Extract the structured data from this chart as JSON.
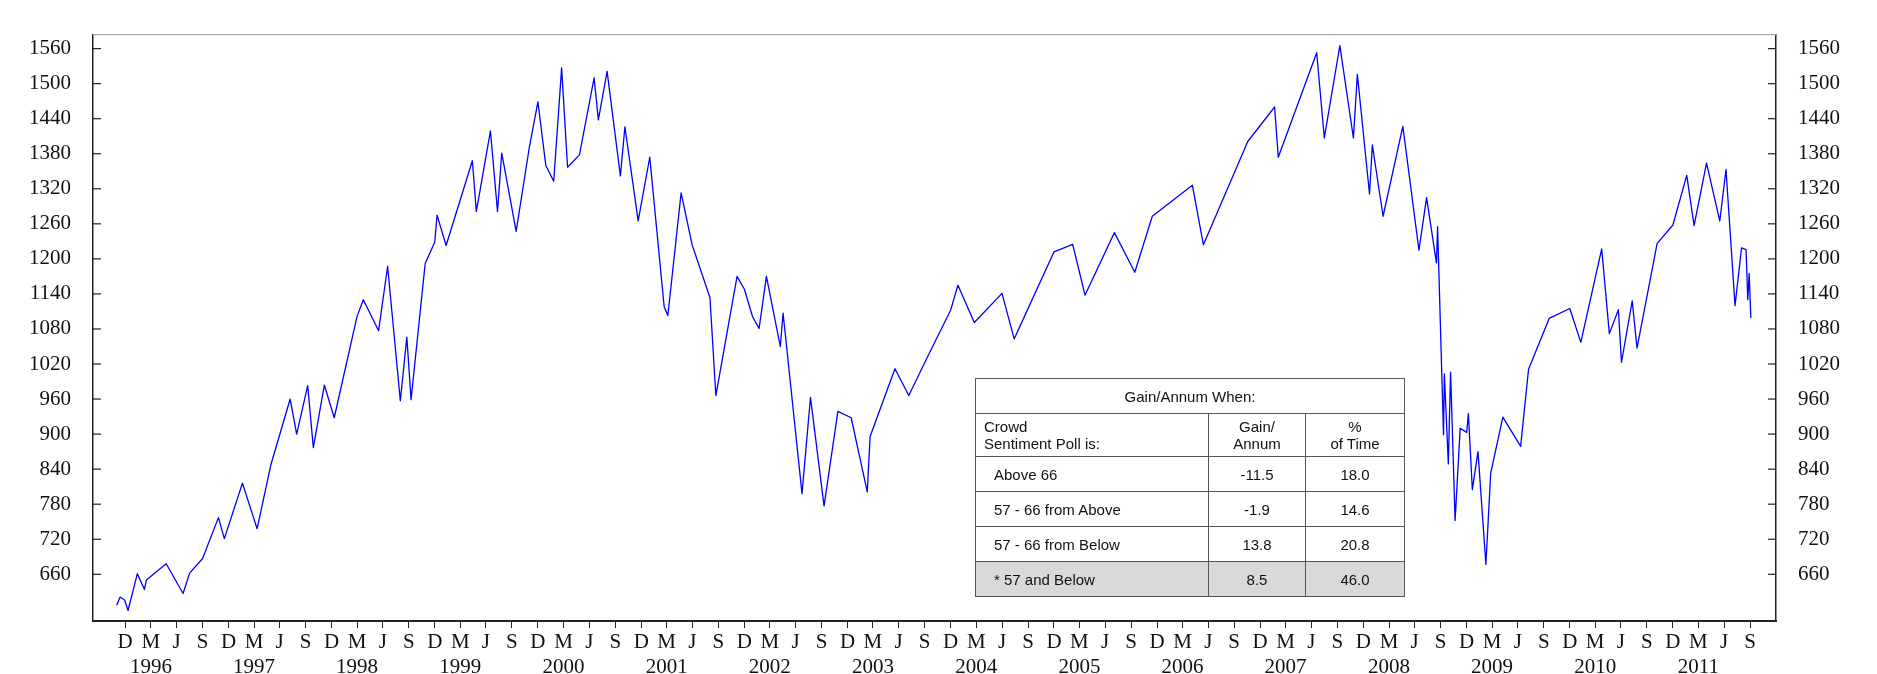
{
  "chart_data": {
    "type": "line",
    "x": [
      "1995-12-01",
      "1995-12-13",
      "1995-12-29",
      "1996-01-10",
      "1996-02-12",
      "1996-03-08",
      "1996-03-15",
      "1996-05-24",
      "1996-07-23",
      "1996-08-15",
      "1996-09-30",
      "1996-11-25",
      "1996-12-16",
      "1997-02-18",
      "1997-04-11",
      "1997-05-30",
      "1997-08-06",
      "1997-08-29",
      "1997-10-07",
      "1997-10-27",
      "1997-12-05",
      "1998-01-09",
      "1998-03-31",
      "1998-04-22",
      "1998-06-15",
      "1998-07-17",
      "1998-08-31",
      "1998-09-23",
      "1998-10-08",
      "1998-11-27",
      "1998-12-31",
      "1999-01-08",
      "1999-02-09",
      "1999-05-13",
      "1999-05-27",
      "1999-07-16",
      "1999-08-10",
      "1999-08-25",
      "1999-10-15",
      "1999-11-30",
      "1999-12-31",
      "2000-01-28",
      "2000-02-25",
      "2000-03-24",
      "2000-04-14",
      "2000-05-26",
      "2000-07-17",
      "2000-08-01",
      "2000-09-01",
      "2000-10-18",
      "2000-11-03",
      "2000-12-20",
      "2001-01-30",
      "2001-03-22",
      "2001-04-04",
      "2001-05-21",
      "2001-06-29",
      "2001-08-31",
      "2001-09-21",
      "2001-12-05",
      "2001-12-31",
      "2002-01-29",
      "2002-02-21",
      "2002-03-19",
      "2002-05-07",
      "2002-05-17",
      "2002-07-23",
      "2002-08-22",
      "2002-10-09",
      "2002-11-27",
      "2003-01-13",
      "2003-03-11",
      "2003-03-21",
      "2003-06-17",
      "2003-08-05",
      "2003-10-17",
      "2003-12-31",
      "2004-01-26",
      "2004-03-24",
      "2004-06-30",
      "2004-08-12",
      "2004-12-31",
      "2005-03-07",
      "2005-04-20",
      "2005-08-02",
      "2005-10-13",
      "2005-12-14",
      "2006-05-05",
      "2006-06-13",
      "2006-11-17",
      "2007-02-20",
      "2007-03-05",
      "2007-07-19",
      "2007-08-15",
      "2007-10-09",
      "2007-11-26",
      "2007-12-10",
      "2008-01-22",
      "2008-02-01",
      "2008-03-10",
      "2008-05-19",
      "2008-07-15",
      "2008-08-11",
      "2008-09-15",
      "2008-09-19",
      "2008-10-10",
      "2008-10-13",
      "2008-10-27",
      "2008-11-04",
      "2008-11-20",
      "2008-12-08",
      "2008-12-31",
      "2009-01-06",
      "2009-01-20",
      "2009-02-09",
      "2009-03-09",
      "2009-03-26",
      "2009-05-08",
      "2009-07-10",
      "2009-08-07",
      "2009-10-19",
      "2009-12-31",
      "2010-02-08",
      "2010-04-23",
      "2010-05-20",
      "2010-06-21",
      "2010-07-02",
      "2010-08-09",
      "2010-08-26",
      "2010-11-05",
      "2010-12-31",
      "2011-02-18",
      "2011-03-16",
      "2011-04-29",
      "2011-06-15",
      "2011-07-07",
      "2011-08-08",
      "2011-08-31",
      "2011-09-16",
      "2011-09-22",
      "2011-09-27",
      "2011-10-03"
    ],
    "series": [
      {
        "color": "#0000ff",
        "values": [
          607,
          621,
          616,
          598,
          661,
          634,
          650,
          678,
          627,
          662,
          687,
          757,
          721,
          816,
          738,
          848,
          960,
          900,
          983,
          877,
          984,
          928,
          1102,
          1130,
          1077,
          1187,
          957,
          1066,
          959,
          1192,
          1229,
          1275,
          1223,
          1368,
          1281,
          1419,
          1281,
          1381,
          1247,
          1389,
          1469,
          1360,
          1333,
          1527,
          1357,
          1378,
          1510,
          1438,
          1521,
          1342,
          1426,
          1265,
          1374,
          1118,
          1103,
          1313,
          1224,
          1134,
          966,
          1170,
          1148,
          1101,
          1081,
          1170,
          1050,
          1107,
          798,
          963,
          777,
          939,
          928,
          801,
          896,
          1012,
          966,
          1039,
          1112,
          1155,
          1091,
          1141,
          1063,
          1212,
          1225,
          1138,
          1245,
          1177,
          1273,
          1326,
          1224,
          1401,
          1460,
          1374,
          1553,
          1407,
          1565,
          1407,
          1516,
          1311,
          1395,
          1273,
          1427,
          1215,
          1305,
          1193,
          1255,
          899,
          1003,
          849,
          1006,
          752,
          910,
          903,
          935,
          805,
          870,
          677,
          833,
          929,
          879,
          1011,
          1098,
          1115,
          1057,
          1217,
          1072,
          1113,
          1023,
          1128,
          1047,
          1226,
          1258,
          1343,
          1257,
          1364,
          1265,
          1353,
          1120,
          1219,
          1216,
          1130,
          1175,
          1099
        ]
      }
    ],
    "xlim": [
      "1995-09-08",
      "2011-12-31"
    ],
    "xticks": [
      {
        "value": "1995-12-31",
        "label": "D"
      },
      {
        "value": "1996-03-31",
        "label": "M\n1996"
      },
      {
        "value": "1996-06-30",
        "label": "J"
      },
      {
        "value": "1996-09-30",
        "label": "S"
      },
      {
        "value": "1996-12-31",
        "label": "D"
      },
      {
        "value": "1997-03-31",
        "label": "M\n1997"
      },
      {
        "value": "1997-06-30",
        "label": "J"
      },
      {
        "value": "1997-09-30",
        "label": "S"
      },
      {
        "value": "1997-12-31",
        "label": "D"
      },
      {
        "value": "1998-03-31",
        "label": "M\n1998"
      },
      {
        "value": "1998-06-30",
        "label": "J"
      },
      {
        "value": "1998-09-30",
        "label": "S"
      },
      {
        "value": "1998-12-31",
        "label": "D"
      },
      {
        "value": "1999-03-31",
        "label": "M\n1999"
      },
      {
        "value": "1999-06-30",
        "label": "J"
      },
      {
        "value": "1999-09-30",
        "label": "S"
      },
      {
        "value": "1999-12-31",
        "label": "D"
      },
      {
        "value": "2000-03-31",
        "label": "M\n2000"
      },
      {
        "value": "2000-06-30",
        "label": "J"
      },
      {
        "value": "2000-09-30",
        "label": "S"
      },
      {
        "value": "2000-12-31",
        "label": "D"
      },
      {
        "value": "2001-03-31",
        "label": "M\n2001"
      },
      {
        "value": "2001-06-30",
        "label": "J"
      },
      {
        "value": "2001-09-30",
        "label": "S"
      },
      {
        "value": "2001-12-31",
        "label": "D"
      },
      {
        "value": "2002-03-31",
        "label": "M\n2002"
      },
      {
        "value": "2002-06-30",
        "label": "J"
      },
      {
        "value": "2002-09-30",
        "label": "S"
      },
      {
        "value": "2002-12-31",
        "label": "D"
      },
      {
        "value": "2003-03-31",
        "label": "M\n2003"
      },
      {
        "value": "2003-06-30",
        "label": "J"
      },
      {
        "value": "2003-09-30",
        "label": "S"
      },
      {
        "value": "2003-12-31",
        "label": "D"
      },
      {
        "value": "2004-03-31",
        "label": "M\n2004"
      },
      {
        "value": "2004-06-30",
        "label": "J"
      },
      {
        "value": "2004-09-30",
        "label": "S"
      },
      {
        "value": "2004-12-31",
        "label": "D"
      },
      {
        "value": "2005-03-31",
        "label": "M\n2005"
      },
      {
        "value": "2005-06-30",
        "label": "J"
      },
      {
        "value": "2005-09-30",
        "label": "S"
      },
      {
        "value": "2005-12-31",
        "label": "D"
      },
      {
        "value": "2006-03-31",
        "label": "M\n2006"
      },
      {
        "value": "2006-06-30",
        "label": "J"
      },
      {
        "value": "2006-09-30",
        "label": "S"
      },
      {
        "value": "2006-12-31",
        "label": "D"
      },
      {
        "value": "2007-03-31",
        "label": "M\n2007"
      },
      {
        "value": "2007-06-30",
        "label": "J"
      },
      {
        "value": "2007-09-30",
        "label": "S"
      },
      {
        "value": "2007-12-31",
        "label": "D"
      },
      {
        "value": "2008-03-31",
        "label": "M\n2008"
      },
      {
        "value": "2008-06-30",
        "label": "J"
      },
      {
        "value": "2008-09-30",
        "label": "S"
      },
      {
        "value": "2008-12-31",
        "label": "D"
      },
      {
        "value": "2009-03-31",
        "label": "M\n2009"
      },
      {
        "value": "2009-06-30",
        "label": "J"
      },
      {
        "value": "2009-09-30",
        "label": "S"
      },
      {
        "value": "2009-12-31",
        "label": "D"
      },
      {
        "value": "2010-03-31",
        "label": "M\n2010"
      },
      {
        "value": "2010-06-30",
        "label": "J"
      },
      {
        "value": "2010-09-30",
        "label": "S"
      },
      {
        "value": "2010-12-31",
        "label": "D"
      },
      {
        "value": "2011-03-31",
        "label": "M\n2011"
      },
      {
        "value": "2011-06-30",
        "label": "J"
      },
      {
        "value": "2011-09-30",
        "label": "S"
      }
    ],
    "ylim": [
      580,
      1584
    ],
    "yticks": [
      660,
      720,
      780,
      840,
      900,
      960,
      1020,
      1080,
      1140,
      1200,
      1260,
      1320,
      1380,
      1440,
      1500,
      1560
    ],
    "y2lim": [
      580,
      1584
    ],
    "y2ticks": [
      660,
      720,
      780,
      840,
      900,
      960,
      1020,
      1080,
      1140,
      1200,
      1260,
      1320,
      1380,
      1440,
      1500,
      1560
    ],
    "annotations": [
      "Gain/Annum When:",
      "Crowd\nSentiment Poll is:",
      "Gain/\nAnnum",
      "%\nof Time",
      "Above 66",
      "-11.5",
      "18.0",
      "57 - 66 from Above",
      "-1.9",
      "14.6",
      "57 - 66 from Below",
      "13.8",
      "20.8",
      "* 57 and Below",
      "8.5",
      "46.0"
    ],
    "grid": false,
    "legend": false,
    "marker": "none",
    "line_style": "solid"
  }
}
